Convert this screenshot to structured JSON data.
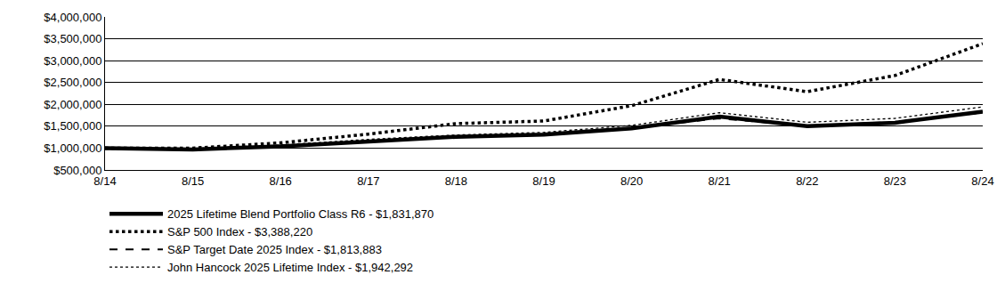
{
  "chart_data": {
    "type": "line",
    "categories": [
      "8/14",
      "8/15",
      "8/16",
      "8/17",
      "8/18",
      "8/19",
      "8/20",
      "8/21",
      "8/22",
      "8/23",
      "8/24"
    ],
    "series": [
      {
        "name": "2025 Lifetime Blend Portfolio Class R6 - $1,831,870",
        "color": "#000000",
        "line_style": "solid",
        "values": [
          1000000,
          970000,
          1040000,
          1160000,
          1260000,
          1310000,
          1450000,
          1720000,
          1500000,
          1580000,
          1831870
        ]
      },
      {
        "name": "S&P 500 Index - $3,388,220",
        "color": "#000000",
        "line_style": "dot",
        "values": [
          1000000,
          1000000,
          1120000,
          1320000,
          1560000,
          1620000,
          1970000,
          2570000,
          2290000,
          2660000,
          3388220
        ]
      },
      {
        "name": "S&P Target Date 2025 Index - $1,813,883",
        "color": "#000000",
        "line_style": "dash",
        "values": [
          1000000,
          975000,
          1050000,
          1170000,
          1270000,
          1320000,
          1460000,
          1680000,
          1510000,
          1600000,
          1813883
        ]
      },
      {
        "name": "John Hancock 2025 Lifetime Index - $1,942,292",
        "color": "#000000",
        "line_style": "dot",
        "values": [
          1000000,
          990000,
          1070000,
          1200000,
          1300000,
          1360000,
          1520000,
          1810000,
          1590000,
          1680000,
          1942292
        ]
      }
    ],
    "ylim": [
      500000,
      4000000
    ],
    "yticks": [
      {
        "value": 500000,
        "label": "$500,000"
      },
      {
        "value": 1000000,
        "label": "$1,000,000"
      },
      {
        "value": 1500000,
        "label": "$1,500,000"
      },
      {
        "value": 2000000,
        "label": "$2,000,000"
      },
      {
        "value": 2500000,
        "label": "$2,500,000"
      },
      {
        "value": 3000000,
        "label": "$3,000,000"
      },
      {
        "value": 3500000,
        "label": "$3,500,000"
      },
      {
        "value": 4000000,
        "label": "$4,000,000"
      }
    ],
    "grid": true,
    "legend": "bottom-left"
  }
}
